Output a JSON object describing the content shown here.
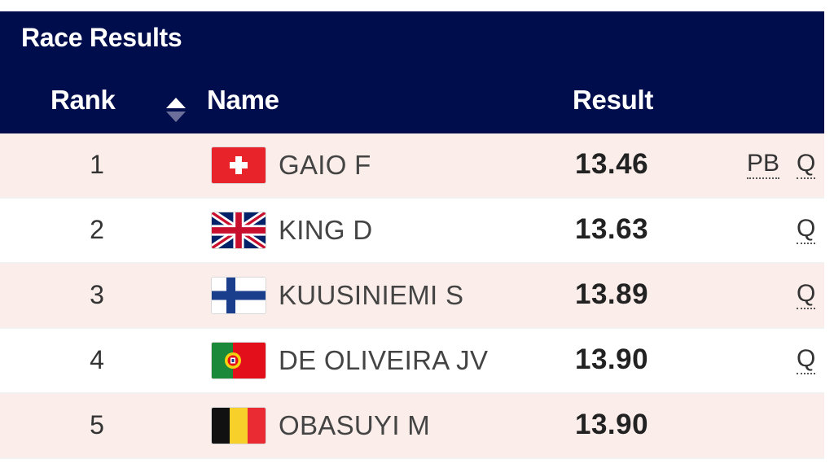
{
  "title": "Race Results",
  "columns": {
    "rank": "Rank",
    "name": "Name",
    "result": "Result"
  },
  "rows": [
    {
      "rank": "1",
      "country": "Switzerland",
      "name": "GAIO F",
      "result": "13.46",
      "pb": "PB",
      "q": "Q"
    },
    {
      "rank": "2",
      "country": "Great Britain",
      "name": "KING D",
      "result": "13.63",
      "pb": "",
      "q": "Q"
    },
    {
      "rank": "3",
      "country": "Finland",
      "name": "KUUSINIEMI S",
      "result": "13.89",
      "pb": "",
      "q": "Q"
    },
    {
      "rank": "4",
      "country": "Portugal",
      "name": "DE OLIVEIRA JV",
      "result": "13.90",
      "pb": "",
      "q": "Q"
    },
    {
      "rank": "5",
      "country": "Belgium",
      "name": "OBASUYI M",
      "result": "13.90",
      "pb": "",
      "q": ""
    }
  ],
  "colors": {
    "header_bg": "#000d4d",
    "row_alt_bg": "#fbeeea"
  },
  "icons": {
    "sort": "sort-up-down-icon"
  }
}
